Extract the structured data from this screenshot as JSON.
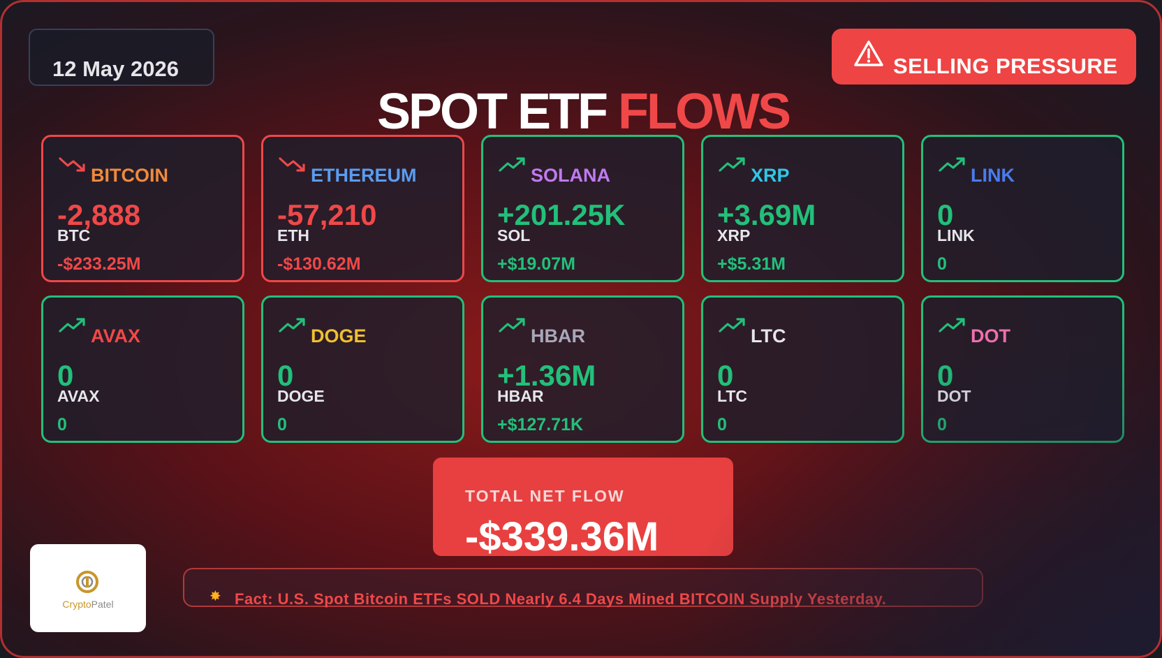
{
  "header": {
    "date": "12 May 2026",
    "alert_label": "SELLING PRESSURE",
    "title_part1": "SPOT ETF",
    "title_part2": "FLOWS"
  },
  "colors": {
    "positive": "#22c07a",
    "negative": "#f04848",
    "alert_bg": "#ee4444"
  },
  "cards": [
    {
      "name": "BITCOIN",
      "amount": "-2,888",
      "symbol": "BTC",
      "usd": "-$233.25M",
      "trend": "down",
      "name_color": "#f08a3c"
    },
    {
      "name": "ETHEREUM",
      "amount": "-57,210",
      "symbol": "ETH",
      "usd": "-$130.62M",
      "trend": "down",
      "name_color": "#5a9cf0"
    },
    {
      "name": "SOLANA",
      "amount": "+201.25K",
      "symbol": "SOL",
      "usd": "+$19.07M",
      "trend": "up",
      "name_color": "#c07af0"
    },
    {
      "name": "XRP",
      "amount": "+3.69M",
      "symbol": "XRP",
      "usd": "+$5.31M",
      "trend": "up",
      "name_color": "#2ec8e8"
    },
    {
      "name": "LINK",
      "amount": "0",
      "symbol": "LINK",
      "usd": "0",
      "trend": "up",
      "name_color": "#4a7cf0"
    },
    {
      "name": "AVAX",
      "amount": "0",
      "symbol": "AVAX",
      "usd": "0",
      "trend": "up",
      "name_color": "#f04848"
    },
    {
      "name": "DOGE",
      "amount": "0",
      "symbol": "DOGE",
      "usd": "0",
      "trend": "up",
      "name_color": "#f0c030"
    },
    {
      "name": "HBAR",
      "amount": "+1.36M",
      "symbol": "HBAR",
      "usd": "+$127.71K",
      "trend": "up",
      "name_color": "#a8a8b8"
    },
    {
      "name": "LTC",
      "amount": "0",
      "symbol": "LTC",
      "usd": "0",
      "trend": "up",
      "name_color": "#e6e6ea"
    },
    {
      "name": "DOT",
      "amount": "0",
      "symbol": "DOT",
      "usd": "0",
      "trend": "up",
      "name_color": "#f070b0"
    }
  ],
  "total": {
    "label": "TOTAL NET FLOW",
    "value": "-$339.36M"
  },
  "fact": {
    "icon": "collision-icon",
    "text": "Fact: U.S. Spot Bitcoin ETFs SOLD Nearly 6.4 Days Mined BITCOIN Supply Yesterday."
  },
  "logo": {
    "brand_part1": "Crypto",
    "brand_part2": "Patel"
  }
}
